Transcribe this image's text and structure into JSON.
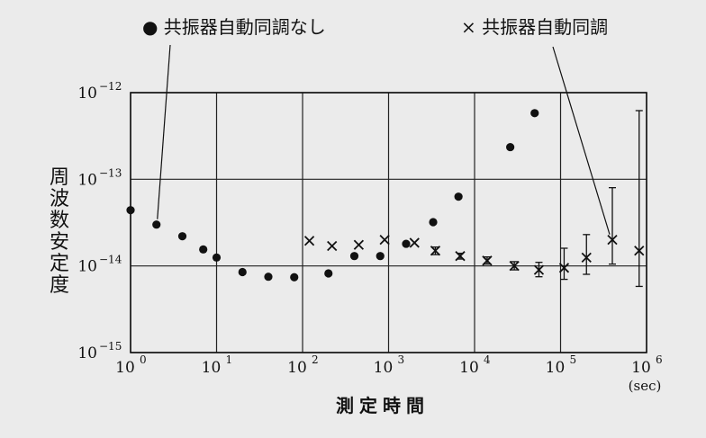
{
  "chart_data": {
    "type": "scatter",
    "title": "",
    "xlabel": "測定時間",
    "ylabel": "周波数安定度",
    "x_unit": "(sec)",
    "x_scale": "log",
    "y_scale": "log",
    "xlim": [
      1,
      1000000
    ],
    "ylim": [
      1e-15,
      1e-12
    ],
    "grid": true,
    "x_ticks": [
      {
        "value": 1,
        "base": "10",
        "exp": "0"
      },
      {
        "value": 10,
        "base": "10",
        "exp": "1"
      },
      {
        "value": 100,
        "base": "10",
        "exp": "2"
      },
      {
        "value": 1000,
        "base": "10",
        "exp": "3"
      },
      {
        "value": 10000,
        "base": "10",
        "exp": "4"
      },
      {
        "value": 100000,
        "base": "10",
        "exp": "5"
      },
      {
        "value": 1000000,
        "base": "10",
        "exp": "6"
      }
    ],
    "y_ticks": [
      {
        "value": 1e-12,
        "base": "10",
        "exp": "−12"
      },
      {
        "value": 1e-13,
        "base": "10",
        "exp": "−13"
      },
      {
        "value": 1e-14,
        "base": "10",
        "exp": "−14"
      },
      {
        "value": 1e-15,
        "base": "10",
        "exp": "−15"
      }
    ],
    "series": [
      {
        "name": "共振器自動同調なし",
        "legend_label": "● 共振器自動同調なし",
        "marker": "dot",
        "points": [
          {
            "x": 1,
            "y": 4.4e-14
          },
          {
            "x": 2,
            "y": 3e-14
          },
          {
            "x": 4,
            "y": 2.2e-14
          },
          {
            "x": 7,
            "y": 1.55e-14
          },
          {
            "x": 10,
            "y": 1.25e-14
          },
          {
            "x": 20,
            "y": 8.5e-15
          },
          {
            "x": 40,
            "y": 7.5e-15
          },
          {
            "x": 80,
            "y": 7.4e-15
          },
          {
            "x": 200,
            "y": 8.2e-15
          },
          {
            "x": 400,
            "y": 1.3e-14
          },
          {
            "x": 800,
            "y": 1.3e-14
          },
          {
            "x": 1600,
            "y": 1.8e-14
          },
          {
            "x": 3300,
            "y": 3.2e-14
          },
          {
            "x": 6500,
            "y": 6.3e-14
          },
          {
            "x": 26000,
            "y": 2.35e-13
          },
          {
            "x": 50000,
            "y": 5.8e-13
          }
        ]
      },
      {
        "name": "共振器自動同調",
        "legend_label": "× 共振器自動同調",
        "marker": "cross",
        "points": [
          {
            "x": 120,
            "y": 1.95e-14
          },
          {
            "x": 220,
            "y": 1.7e-14
          },
          {
            "x": 450,
            "y": 1.75e-14
          },
          {
            "x": 900,
            "y": 2e-14
          },
          {
            "x": 2000,
            "y": 1.85e-14
          },
          {
            "x": 3500,
            "y": 1.5e-14,
            "err": [
              1.35e-14,
              1.65e-14
            ]
          },
          {
            "x": 6800,
            "y": 1.3e-14,
            "err": [
              1.2e-14,
              1.4e-14
            ]
          },
          {
            "x": 14000,
            "y": 1.15e-14,
            "err": [
              1.05e-14,
              1.27e-14
            ]
          },
          {
            "x": 29000,
            "y": 1e-14,
            "err": [
              9e-15,
              1.12e-14
            ]
          },
          {
            "x": 56000,
            "y": 9e-15,
            "err": [
              7.5e-15,
              1.1e-14
            ]
          },
          {
            "x": 110000,
            "y": 9.5e-15,
            "err": [
              7e-15,
              1.6e-14
            ]
          },
          {
            "x": 200000,
            "y": 1.25e-14,
            "err": [
              8e-15,
              2.3e-14
            ]
          },
          {
            "x": 400000,
            "y": 2e-14,
            "err": [
              1.05e-14,
              8e-14
            ]
          },
          {
            "x": 820000,
            "y": 1.5e-14,
            "err": [
              5.8e-15,
              6.2e-13
            ]
          }
        ]
      }
    ]
  }
}
